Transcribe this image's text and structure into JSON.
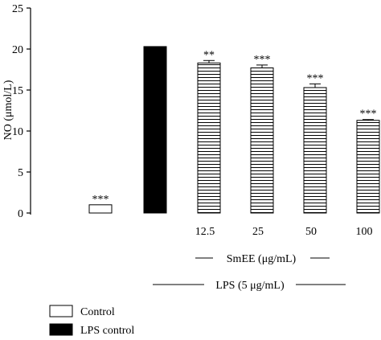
{
  "chart_data": {
    "type": "bar",
    "ylabel": "NO (μmol/L)",
    "ylim": [
      0,
      25
    ],
    "yticks": [
      0,
      5,
      10,
      15,
      20,
      25
    ],
    "grid": false,
    "legend_position": "bottom-left",
    "categories": [
      "Control",
      "LPS control",
      "12.5",
      "25",
      "50",
      "100"
    ],
    "values": [
      1.0,
      20.3,
      18.3,
      17.7,
      15.3,
      11.3
    ],
    "errors": [
      0,
      0,
      0.3,
      0.35,
      0.45,
      0.1
    ],
    "significance": [
      "***",
      "",
      "**",
      "***",
      "***",
      "***"
    ],
    "fills": [
      "white",
      "black",
      "hatch",
      "hatch",
      "hatch",
      "hatch"
    ],
    "group_labels": {
      "smee": "SmEE (μg/mL)",
      "lps": "LPS (5 μg/mL)"
    },
    "legend": [
      {
        "label": "Control",
        "fill": "white"
      },
      {
        "label": "LPS control",
        "fill": "black"
      }
    ]
  }
}
